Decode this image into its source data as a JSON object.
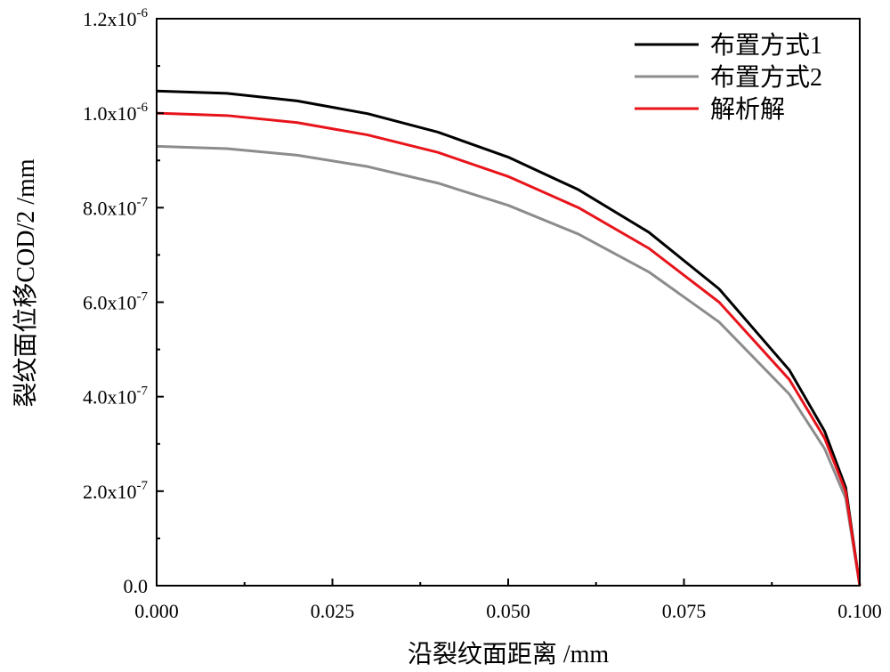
{
  "chart_data": {
    "type": "line",
    "xlabel": "沿裂纹面距离 /mm",
    "ylabel": "裂纹面位移COD/2 /mm",
    "xlim": [
      0,
      0.1
    ],
    "ylim": [
      0,
      1.2e-06
    ],
    "x_ticks": [
      {
        "value": 0,
        "label": "0.000"
      },
      {
        "value": 0.025,
        "label": "0.025"
      },
      {
        "value": 0.05,
        "label": "0.050"
      },
      {
        "value": 0.075,
        "label": "0.075"
      },
      {
        "value": 0.1,
        "label": "0.100"
      }
    ],
    "y_ticks": [
      {
        "value": 0,
        "mant": "0.0",
        "exp": ""
      },
      {
        "value": 2e-07,
        "mant": "2.0x10",
        "exp": "-7"
      },
      {
        "value": 4e-07,
        "mant": "4.0x10",
        "exp": "-7"
      },
      {
        "value": 6e-07,
        "mant": "6.0x10",
        "exp": "-7"
      },
      {
        "value": 8e-07,
        "mant": "8.0x10",
        "exp": "-7"
      },
      {
        "value": 1e-06,
        "mant": "1.0x10",
        "exp": "-6"
      },
      {
        "value": 1.2e-06,
        "mant": "1.2x10",
        "exp": "-6"
      }
    ],
    "legend_position": "top-right",
    "series": [
      {
        "name": "布置方式1",
        "color": "#000000",
        "x": [
          0,
          0.01,
          0.02,
          0.03,
          0.04,
          0.05,
          0.06,
          0.07,
          0.08,
          0.09,
          0.095,
          0.098,
          0.1
        ],
        "y": [
          1.047e-06,
          1.042e-06,
          1.026e-06,
          9.99e-07,
          9.6e-07,
          9.07e-07,
          8.38e-07,
          7.48e-07,
          6.28e-07,
          4.56e-07,
          3.27e-07,
          2.08e-07,
          0
        ]
      },
      {
        "name": "布置方式2",
        "color": "#8c8c8c",
        "x": [
          0,
          0.01,
          0.02,
          0.03,
          0.04,
          0.05,
          0.06,
          0.07,
          0.08,
          0.09,
          0.095,
          0.098,
          0.1
        ],
        "y": [
          9.3e-07,
          9.25e-07,
          9.11e-07,
          8.87e-07,
          8.52e-07,
          8.05e-07,
          7.44e-07,
          6.64e-07,
          5.58e-07,
          4.05e-07,
          2.9e-07,
          1.85e-07,
          0
        ]
      },
      {
        "name": "解析解",
        "color": "#e8141b",
        "x": [
          0,
          0.01,
          0.02,
          0.03,
          0.04,
          0.05,
          0.06,
          0.07,
          0.08,
          0.09,
          0.095,
          0.098,
          0.1
        ],
        "y": [
          1e-06,
          9.95e-07,
          9.8e-07,
          9.54e-07,
          9.17e-07,
          8.66e-07,
          8e-07,
          7.14e-07,
          6e-07,
          4.36e-07,
          3.12e-07,
          1.99e-07,
          0
        ]
      }
    ]
  }
}
